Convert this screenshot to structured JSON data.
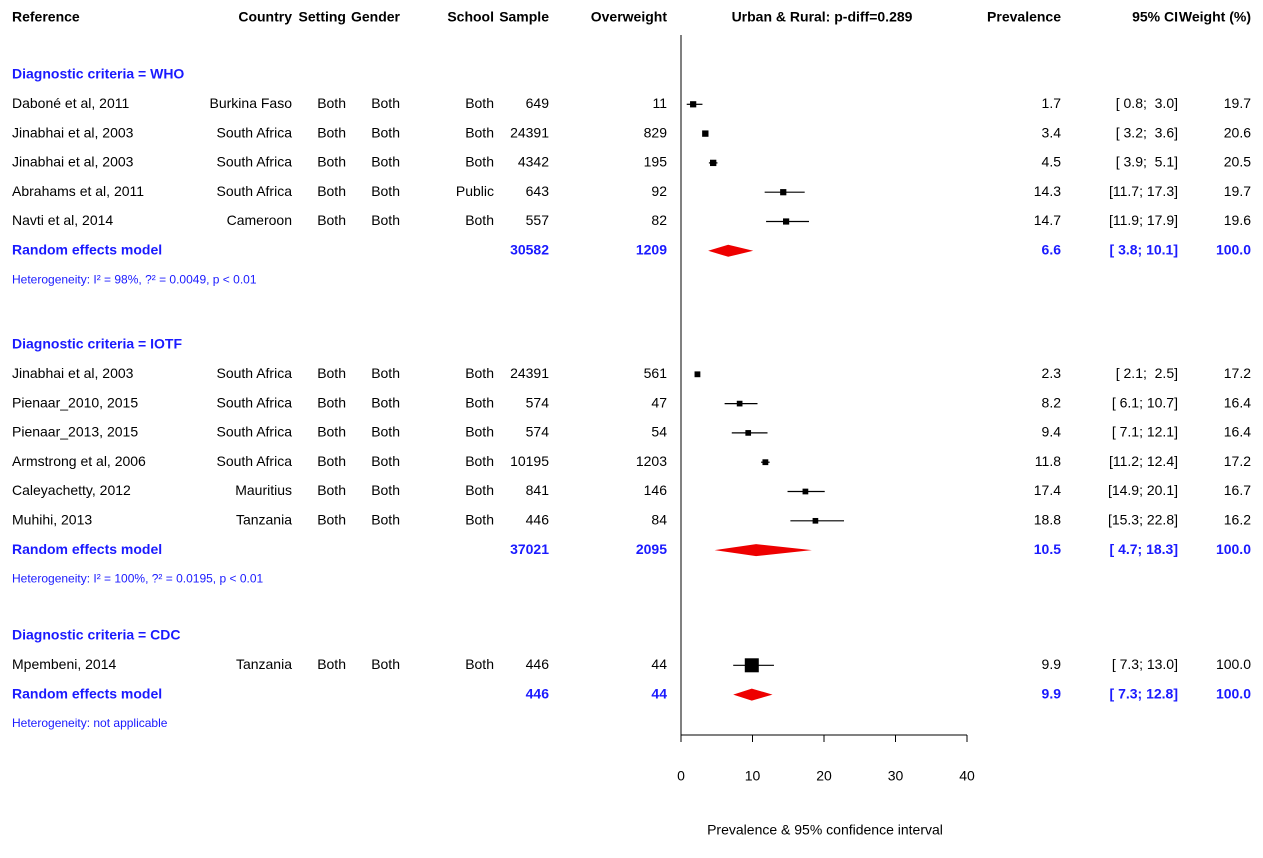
{
  "chart_data": {
    "type": "forest",
    "columns": {
      "reference": "Reference",
      "country": "Country",
      "setting": "Setting",
      "gender": "Gender",
      "school": "School",
      "sample": "Sample",
      "overweight": "Overweight"
    },
    "plot_title": "Urban & Rural: p-diff=0.289",
    "right_columns": {
      "prevalence": "Prevalence",
      "ci": "95% CI",
      "weight": "Weight (%)"
    },
    "xlabel": "Prevalence & 95% confidence interval",
    "xlim": [
      0,
      40
    ],
    "xticks": [
      0,
      10,
      20,
      30,
      40
    ],
    "study_color": "#000000",
    "pooled_color": "#ee0000",
    "groups": [
      {
        "label": "Diagnostic criteria = WHO",
        "studies": [
          {
            "reference": "Daboné et al, 2011",
            "country": "Burkina Faso",
            "setting": "Both",
            "gender": "Both",
            "school": "Both",
            "sample": 649,
            "overweight": 11,
            "prevalence": 1.7,
            "ci": [
              0.8,
              3.0
            ],
            "ci_label": "[ 0.8;  3.0]",
            "weight": 19.7
          },
          {
            "reference": "Jinabhai et al, 2003",
            "country": "South Africa",
            "setting": "Both",
            "gender": "Both",
            "school": "Both",
            "sample": 24391,
            "overweight": 829,
            "prevalence": 3.4,
            "ci": [
              3.2,
              3.6
            ],
            "ci_label": "[ 3.2;  3.6]",
            "weight": 20.6
          },
          {
            "reference": "Jinabhai et al, 2003",
            "country": "South Africa",
            "setting": "Both",
            "gender": "Both",
            "school": "Both",
            "sample": 4342,
            "overweight": 195,
            "prevalence": 4.5,
            "ci": [
              3.9,
              5.1
            ],
            "ci_label": "[ 3.9;  5.1]",
            "weight": 20.5
          },
          {
            "reference": "Abrahams et al, 2011",
            "country": "South Africa",
            "setting": "Both",
            "gender": "Both",
            "school": "Public",
            "sample": 643,
            "overweight": 92,
            "prevalence": 14.3,
            "ci": [
              11.7,
              17.3
            ],
            "ci_label": "[11.7; 17.3]",
            "weight": 19.7
          },
          {
            "reference": "Navti et al, 2014",
            "country": "Cameroon",
            "setting": "Both",
            "gender": "Both",
            "school": "Both",
            "sample": 557,
            "overweight": 82,
            "prevalence": 14.7,
            "ci": [
              11.9,
              17.9
            ],
            "ci_label": "[11.9; 17.9]",
            "weight": 19.6
          }
        ],
        "pooled": {
          "label": "Random effects model",
          "sample": 30582,
          "overweight": 1209,
          "prevalence": 6.6,
          "ci": [
            3.8,
            10.1
          ],
          "ci_label": "[ 3.8; 10.1]",
          "weight": 100,
          "weight_label": "100.0"
        },
        "heterogeneity": "Heterogeneity:  I² = 98%, ?² = 0.0049, p < 0.01"
      },
      {
        "label": "Diagnostic criteria = IOTF",
        "studies": [
          {
            "reference": "Jinabhai et al, 2003",
            "country": "South Africa",
            "setting": "Both",
            "gender": "Both",
            "school": "Both",
            "sample": 24391,
            "overweight": 561,
            "prevalence": 2.3,
            "ci": [
              2.1,
              2.5
            ],
            "ci_label": "[ 2.1;  2.5]",
            "weight": 17.2
          },
          {
            "reference": "Pienaar_2010, 2015",
            "country": "South Africa",
            "setting": "Both",
            "gender": "Both",
            "school": "Both",
            "sample": 574,
            "overweight": 47,
            "prevalence": 8.2,
            "ci": [
              6.1,
              10.7
            ],
            "ci_label": "[ 6.1; 10.7]",
            "weight": 16.4
          },
          {
            "reference": "Pienaar_2013, 2015",
            "country": "South Africa",
            "setting": "Both",
            "gender": "Both",
            "school": "Both",
            "sample": 574,
            "overweight": 54,
            "prevalence": 9.4,
            "ci": [
              7.1,
              12.1
            ],
            "ci_label": "[ 7.1; 12.1]",
            "weight": 16.4
          },
          {
            "reference": "Armstrong et al, 2006",
            "country": "South Africa",
            "setting": "Both",
            "gender": "Both",
            "school": "Both",
            "sample": 10195,
            "overweight": 1203,
            "prevalence": 11.8,
            "ci": [
              11.2,
              12.4
            ],
            "ci_label": "[11.2; 12.4]",
            "weight": 17.2
          },
          {
            "reference": "Caleyachetty, 2012",
            "country": "Mauritius",
            "setting": "Both",
            "gender": "Both",
            "school": "Both",
            "sample": 841,
            "overweight": 146,
            "prevalence": 17.4,
            "ci": [
              14.9,
              20.1
            ],
            "ci_label": "[14.9; 20.1]",
            "weight": 16.7
          },
          {
            "reference": "Muhihi, 2013",
            "country": "Tanzania",
            "setting": "Both",
            "gender": "Both",
            "school": "Both",
            "sample": 446,
            "overweight": 84,
            "prevalence": 18.8,
            "ci": [
              15.3,
              22.8
            ],
            "ci_label": "[15.3; 22.8]",
            "weight": 16.2
          }
        ],
        "pooled": {
          "label": "Random effects model",
          "sample": 37021,
          "overweight": 2095,
          "prevalence": 10.5,
          "ci": [
            4.7,
            18.3
          ],
          "ci_label": "[ 4.7; 18.3]",
          "weight": 100,
          "weight_label": "100.0"
        },
        "heterogeneity": "Heterogeneity:  I² = 100%, ?² = 0.0195, p < 0.01"
      },
      {
        "label": "Diagnostic criteria = CDC",
        "studies": [
          {
            "reference": "Mpembeni, 2014",
            "country": "Tanzania",
            "setting": "Both",
            "gender": "Both",
            "school": "Both",
            "sample": 446,
            "overweight": 44,
            "prevalence": 9.9,
            "ci": [
              7.3,
              13.0
            ],
            "ci_label": "[ 7.3; 13.0]",
            "weight": 100,
            "weight_label": "100.0"
          }
        ],
        "pooled": {
          "label": "Random effects model",
          "sample": 446,
          "overweight": 44,
          "prevalence": 9.9,
          "ci": [
            7.3,
            12.8
          ],
          "ci_label": "[ 7.3; 12.8]",
          "weight": 100,
          "weight_label": "100.0"
        },
        "heterogeneity": "Heterogeneity: not applicable"
      }
    ]
  }
}
